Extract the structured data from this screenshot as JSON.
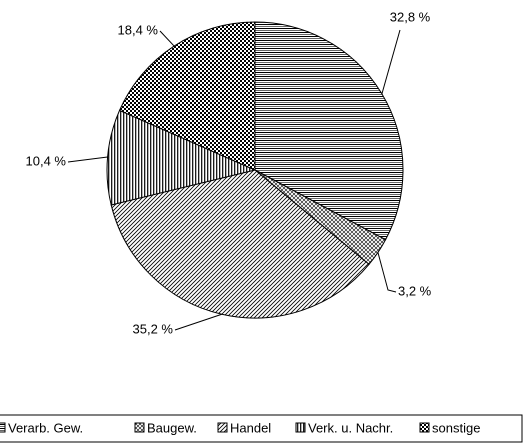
{
  "chart_data": {
    "type": "pie",
    "categories": [
      "Verarb. Gew.",
      "Baugew.",
      "Handel",
      "Verk. u. Nachr.",
      "sonstige"
    ],
    "values": [
      32.8,
      3.2,
      35.2,
      10.4,
      18.4
    ],
    "value_labels": [
      "32,8 %",
      "3,2 %",
      "35,2 %",
      "10,4 %",
      "18,4 %"
    ],
    "legend": "bottom"
  }
}
